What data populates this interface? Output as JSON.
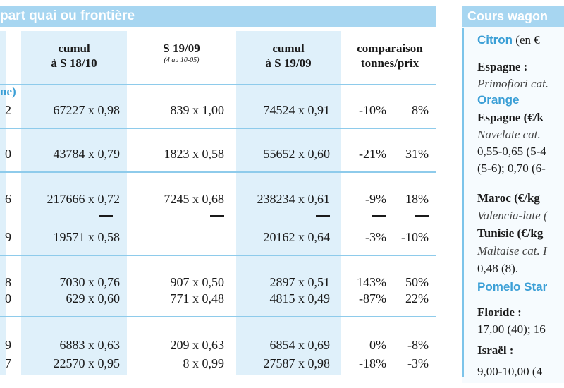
{
  "left_header": "part quai ou frontière",
  "columns": {
    "cumul_18_10": {
      "line1": "cumul",
      "line2": "à S 18/10"
    },
    "s_19_09": {
      "line1": "S 19/09",
      "sub": "(4 au 10-05)"
    },
    "cumul_19_09": {
      "line1": "cumul",
      "line2": "à S 19/09"
    },
    "comparaison": {
      "line1": "comparaison",
      "line2": "tonnes/prix"
    }
  },
  "section_fragment": "ne)",
  "rows": [
    {
      "edge": "2",
      "c1": "67227 x 0,98",
      "c2": "839 x 1,00",
      "c3": "74524 x 0,91",
      "pct_t": "-10%",
      "pct_p": "8%"
    },
    {
      "edge": "0",
      "c1": "43784 x 0,79",
      "c2": "1823 x 0,58",
      "c3": "55652 x 0,60",
      "pct_t": "-21%",
      "pct_p": "31%"
    },
    {
      "edge": "6",
      "c1": "217666 x 0,72",
      "c2": "7245 x 0,68",
      "c3": "238234 x 0,61",
      "pct_t": "-9%",
      "pct_p": "18%"
    },
    {
      "edge": "9",
      "c1": "19571 x 0,58",
      "c2": "—",
      "c3": "20162 x 0,64",
      "pct_t": "-3%",
      "pct_p": "-10%"
    },
    {
      "edge": "8",
      "c1": "7030 x 0,76",
      "c2": "907 x 0,50",
      "c3": "2897 x 0,51",
      "pct_t": "143%",
      "pct_p": "50%"
    },
    {
      "edge": "0",
      "c1": "629 x 0,60",
      "c2": "771 x 0,48",
      "c3": "4815 x 0,49",
      "pct_t": "-87%",
      "pct_p": "22%"
    },
    {
      "edge": "9",
      "c1": "6883 x 0,63",
      "c2": "209 x 0,63",
      "c3": "6854 x 0,69",
      "pct_t": "0%",
      "pct_p": "-8%"
    },
    {
      "edge": "7",
      "c1": "22570 x 0,95",
      "c2": "8 x 0,99",
      "c3": "27587 x 0,98",
      "pct_t": "-18%",
      "pct_p": "-3%"
    }
  ],
  "right_panel": {
    "header": "Cours wagon",
    "lines": [
      {
        "text": "Citron",
        "tail": " (en €",
        "style": "blue"
      },
      {
        "text": "Espagne :",
        "style": "bold"
      },
      {
        "text": "Primofiori cat.",
        "style": "ital"
      },
      {
        "text": "Orange",
        "style": "blue"
      },
      {
        "text": "Espagne (€/k",
        "style": "bold"
      },
      {
        "text": "Navelate cat.",
        "style": "ital"
      },
      {
        "text": "0,55-0,65 (5-4",
        "style": "plain"
      },
      {
        "text": "(5-6); 0,70 (6-",
        "style": "plain"
      },
      {
        "text": "Maroc (€/kg",
        "style": "bold"
      },
      {
        "text": "Valencia-late (",
        "style": "ital"
      },
      {
        "text": "Tunisie (€/kg",
        "style": "bold"
      },
      {
        "text": "Maltaise cat. I",
        "style": "ital"
      },
      {
        "text": "0,48 (8).",
        "style": "plain"
      },
      {
        "text": "Pomelo Star",
        "style": "blue"
      },
      {
        "text": "Floride :",
        "style": "bold"
      },
      {
        "text": "17,00 (40); 16",
        "style": "plain"
      },
      {
        "text": "Israël :",
        "style": "bold"
      },
      {
        "text": "9,00-10,00 (4",
        "style": "plain"
      }
    ]
  }
}
